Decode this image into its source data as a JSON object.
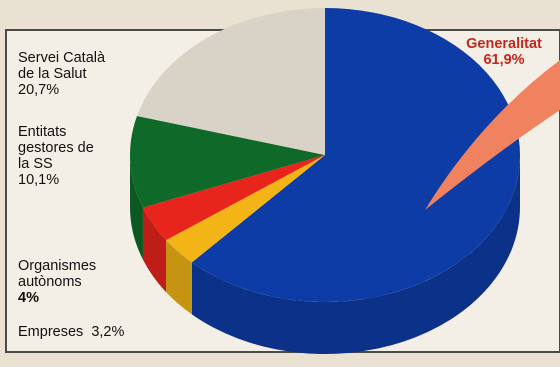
{
  "chart_data": {
    "type": "pie",
    "style": "3d-pie-with-exploded-callout",
    "slices": [
      {
        "label": "Generalitat",
        "value_text": "61,9%",
        "value": 61.9,
        "color": "#0d3ca6"
      },
      {
        "label": "Empreses",
        "value_text": "3,2%",
        "value": 3.2,
        "color": "#f2b417"
      },
      {
        "label": "Organismes autònoms",
        "value_text": "4%",
        "value": 4.0,
        "color": "#e8251c"
      },
      {
        "label": "Entitats gestores de la SS",
        "value_text": "10,1%",
        "value": 10.1,
        "color": "#0f6a2a"
      },
      {
        "label": "Servei Català de la Salut",
        "value_text": "20,7%",
        "value": 20.7,
        "color": "#d8d3c6"
      }
    ],
    "callout_color": "#f0825f"
  },
  "labels": {
    "servei_line1": "Servei Català",
    "servei_line2": "de la Salut",
    "servei_value": "20,7%",
    "entitats_line1": "Entitats",
    "entitats_line2": "gestores de",
    "entitats_line3": "la SS",
    "entitats_value": "10,1%",
    "organismes_line1": "Organismes",
    "organismes_line2": "autònoms",
    "organismes_value": "4%",
    "empreses_label": "Empreses",
    "empreses_value": "3,2%",
    "generalitat_label": "Generalitat",
    "generalitat_value": "61,9%"
  }
}
